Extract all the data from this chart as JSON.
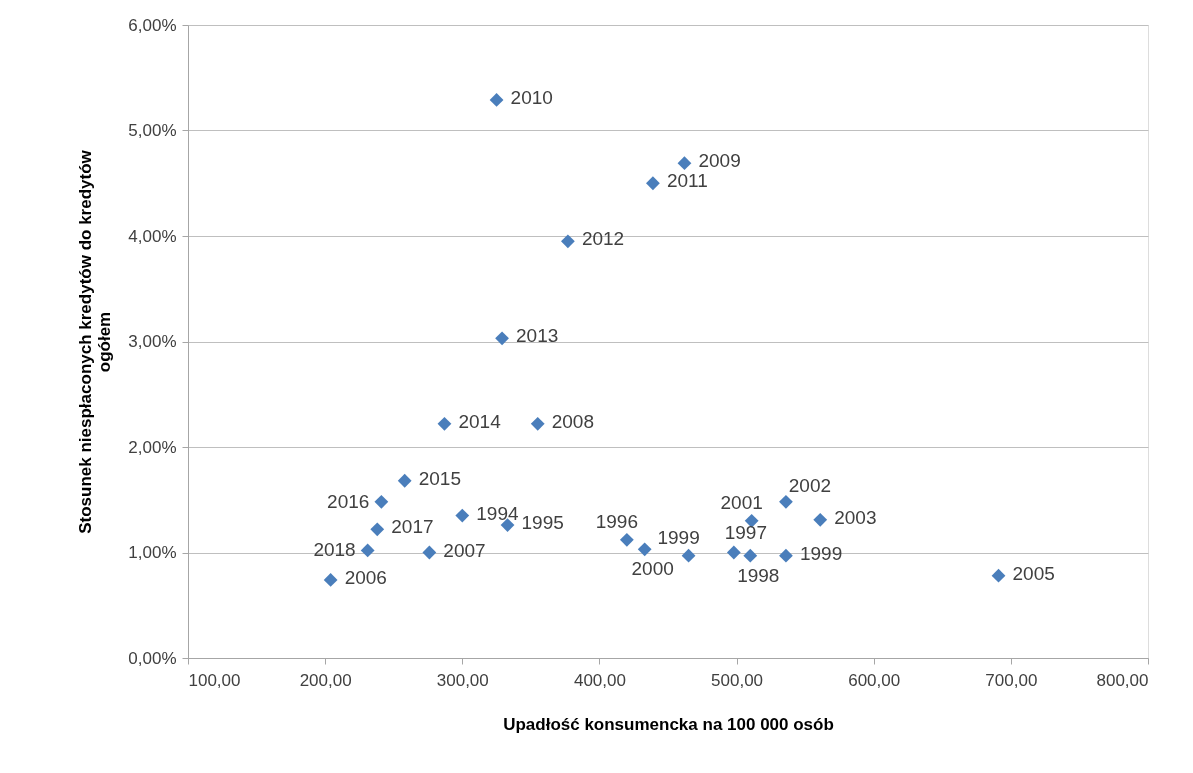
{
  "chart_data": {
    "type": "scatter",
    "xlabel": "Upadłość konsumencka na 100 000 osób",
    "ylabel": "Stosunek niespłaconych kredytów do kredytów ogółem",
    "x": [
      325,
      462,
      439,
      377,
      329,
      287,
      355,
      258,
      241,
      238,
      231,
      204,
      300,
      333,
      276,
      420,
      433,
      465,
      498,
      510,
      511,
      536,
      561,
      536,
      691
    ],
    "series": [
      {
        "color": "#4a7ebb",
        "values": [
          5.29,
          4.69,
          4.5,
          3.95,
          3.03,
          2.22,
          2.22,
          1.68,
          1.48,
          1.22,
          1.02,
          0.74,
          1.35,
          1.26,
          1.0,
          1.12,
          1.03,
          0.97,
          1.0,
          0.97,
          1.3,
          1.48,
          1.31,
          0.97,
          0.78
        ]
      }
    ],
    "annotations": [
      {
        "text": "2010",
        "x": 325,
        "y": 5.29
      },
      {
        "text": "2009",
        "x": 462,
        "y": 4.69
      },
      {
        "text": "2011",
        "x": 439,
        "y": 4.5
      },
      {
        "text": "2012",
        "x": 377,
        "y": 3.95
      },
      {
        "text": "2013",
        "x": 329,
        "y": 3.03
      },
      {
        "text": "2014",
        "x": 287,
        "y": 2.22
      },
      {
        "text": "2008",
        "x": 355,
        "y": 2.22
      },
      {
        "text": "2015",
        "x": 258,
        "y": 1.68
      },
      {
        "text": "2016",
        "x": 241,
        "y": 1.48
      },
      {
        "text": "2017",
        "x": 238,
        "y": 1.22
      },
      {
        "text": "2018",
        "x": 231,
        "y": 1.02
      },
      {
        "text": "2006",
        "x": 204,
        "y": 0.74
      },
      {
        "text": "1994",
        "x": 300,
        "y": 1.35
      },
      {
        "text": "1995",
        "x": 333,
        "y": 1.26
      },
      {
        "text": "2007",
        "x": 276,
        "y": 1.0
      },
      {
        "text": "1996",
        "x": 420,
        "y": 1.12
      },
      {
        "text": "2000",
        "x": 433,
        "y": 1.03
      },
      {
        "text": "1999",
        "x": 465,
        "y": 0.97
      },
      {
        "text": "1997",
        "x": 498,
        "y": 1.0
      },
      {
        "text": "1998",
        "x": 510,
        "y": 0.97
      },
      {
        "text": "2001",
        "x": 511,
        "y": 1.3
      },
      {
        "text": "2002",
        "x": 536,
        "y": 1.48
      },
      {
        "text": "2003",
        "x": 561,
        "y": 1.31
      },
      {
        "text": "1999",
        "x": 536,
        "y": 0.97
      },
      {
        "text": "2005",
        "x": 691,
        "y": 0.78
      }
    ],
    "xlim": [
      100,
      800
    ],
    "xticks": [
      {
        "value": 100,
        "label": "100,00"
      },
      {
        "value": 200,
        "label": "200,00"
      },
      {
        "value": 300,
        "label": "300,00"
      },
      {
        "value": 400,
        "label": "400,00"
      },
      {
        "value": 500,
        "label": "500,00"
      },
      {
        "value": 600,
        "label": "600,00"
      },
      {
        "value": 700,
        "label": "700,00"
      },
      {
        "value": 800,
        "label": "800,00"
      }
    ],
    "ylim": [
      0,
      6
    ],
    "yticks": [
      {
        "value": 0,
        "label": "0,00%"
      },
      {
        "value": 1,
        "label": "1,00%"
      },
      {
        "value": 2,
        "label": "2,00%"
      },
      {
        "value": 3,
        "label": "3,00%"
      },
      {
        "value": 4,
        "label": "4,00%"
      },
      {
        "value": 5,
        "label": "5,00%"
      },
      {
        "value": 6,
        "label": "6,00%"
      }
    ],
    "grid": "y",
    "marker": "diamond"
  }
}
